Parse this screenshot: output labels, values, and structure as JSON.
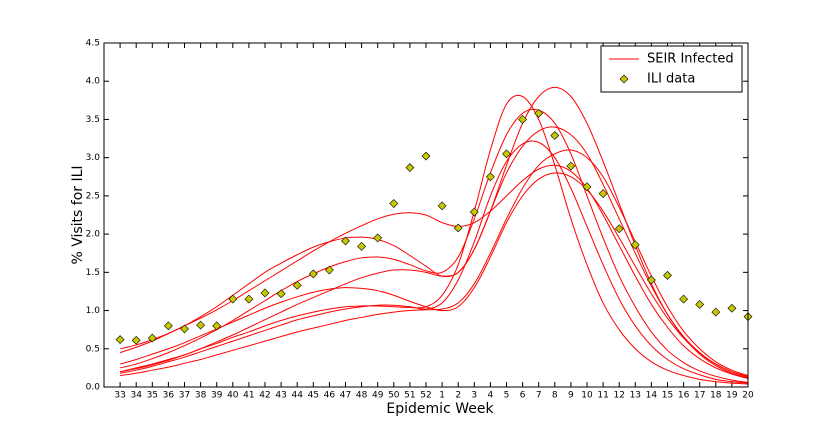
{
  "chart_data": {
    "type": "line-scatter",
    "x_label": "Epidemic Week",
    "y_label": "% Visits for ILI",
    "categories": [
      "33",
      "34",
      "35",
      "36",
      "37",
      "38",
      "39",
      "40",
      "41",
      "42",
      "43",
      "44",
      "45",
      "46",
      "47",
      "48",
      "49",
      "50",
      "51",
      "52",
      "1",
      "2",
      "3",
      "4",
      "5",
      "6",
      "7",
      "8",
      "9",
      "10",
      "11",
      "12",
      "13",
      "14",
      "15",
      "16",
      "17",
      "18",
      "19",
      "20"
    ],
    "ylim": [
      0,
      4.5
    ],
    "yticks": [
      {
        "value": 0,
        "label": "0.0"
      },
      {
        "value": 0.5,
        "label": "0.5"
      },
      {
        "value": 1,
        "label": "1.0"
      },
      {
        "value": 1.5,
        "label": "1.5"
      },
      {
        "value": 2,
        "label": "2.0"
      },
      {
        "value": 2.5,
        "label": "2.5"
      },
      {
        "value": 3,
        "label": "3.0"
      },
      {
        "value": 3.5,
        "label": "3.5"
      },
      {
        "value": 4,
        "label": "4.0"
      },
      {
        "value": 4.5,
        "label": "4.5"
      }
    ],
    "legend": "upper right",
    "lines": {
      "name": "SEIR Infected",
      "color": "#ff0000",
      "runs": [
        [
          0.2,
          0.25,
          0.3,
          0.36,
          0.42,
          0.5,
          0.57,
          0.65,
          0.72,
          0.8,
          0.87,
          0.93,
          0.98,
          1.02,
          1.05,
          1.06,
          1.06,
          1.05,
          1.04,
          1.05,
          1.2,
          1.6,
          2.3,
          3.1,
          3.7,
          3.8,
          3.5,
          2.9,
          2.2,
          1.6,
          1.1,
          0.75,
          0.5,
          0.33,
          0.22,
          0.15,
          0.1,
          0.07,
          0.05,
          0.04
        ],
        [
          0.45,
          0.52,
          0.6,
          0.7,
          0.8,
          0.92,
          1.05,
          1.2,
          1.35,
          1.5,
          1.62,
          1.73,
          1.83,
          1.9,
          1.95,
          1.96,
          1.93,
          1.85,
          1.72,
          1.58,
          1.45,
          1.5,
          1.8,
          2.3,
          2.9,
          3.45,
          3.8,
          3.92,
          3.8,
          3.45,
          2.95,
          2.4,
          1.85,
          1.35,
          0.95,
          0.65,
          0.43,
          0.28,
          0.18,
          0.12
        ],
        [
          0.25,
          0.3,
          0.37,
          0.45,
          0.54,
          0.64,
          0.75,
          0.87,
          1.0,
          1.13,
          1.26,
          1.38,
          1.48,
          1.57,
          1.64,
          1.69,
          1.7,
          1.67,
          1.6,
          1.52,
          1.5,
          1.7,
          2.2,
          2.8,
          3.3,
          3.58,
          3.62,
          3.45,
          3.05,
          2.5,
          1.95,
          1.45,
          1.05,
          0.72,
          0.48,
          0.32,
          0.21,
          0.14,
          0.09,
          0.06
        ],
        [
          0.2,
          0.24,
          0.29,
          0.35,
          0.42,
          0.5,
          0.59,
          0.68,
          0.78,
          0.88,
          0.98,
          1.08,
          1.17,
          1.26,
          1.35,
          1.43,
          1.49,
          1.53,
          1.53,
          1.5,
          1.45,
          1.5,
          1.8,
          2.3,
          2.8,
          3.15,
          3.35,
          3.4,
          3.3,
          3.05,
          2.65,
          2.2,
          1.75,
          1.32,
          0.95,
          0.66,
          0.45,
          0.3,
          0.2,
          0.13
        ],
        [
          0.18,
          0.22,
          0.27,
          0.33,
          0.39,
          0.46,
          0.53,
          0.6,
          0.67,
          0.74,
          0.81,
          0.88,
          0.93,
          0.98,
          1.02,
          1.05,
          1.07,
          1.07,
          1.05,
          1.02,
          1.1,
          1.4,
          1.9,
          2.5,
          2.95,
          3.18,
          3.2,
          3.0,
          2.6,
          2.1,
          1.6,
          1.15,
          0.8,
          0.54,
          0.36,
          0.24,
          0.16,
          0.1,
          0.07,
          0.05
        ],
        [
          0.15,
          0.18,
          0.22,
          0.26,
          0.31,
          0.36,
          0.42,
          0.48,
          0.54,
          0.6,
          0.66,
          0.72,
          0.77,
          0.82,
          0.87,
          0.91,
          0.95,
          0.98,
          1.0,
          1.01,
          1.02,
          1.1,
          1.35,
          1.75,
          2.2,
          2.6,
          2.9,
          3.05,
          3.1,
          3.0,
          2.75,
          2.35,
          1.9,
          1.45,
          1.05,
          0.73,
          0.5,
          0.33,
          0.22,
          0.15
        ],
        [
          0.5,
          0.55,
          0.62,
          0.7,
          0.8,
          0.9,
          1.01,
          1.13,
          1.26,
          1.39,
          1.52,
          1.65,
          1.78,
          1.9,
          2.01,
          2.11,
          2.2,
          2.26,
          2.28,
          2.25,
          2.15,
          2.1,
          2.15,
          2.3,
          2.5,
          2.7,
          2.85,
          2.9,
          2.82,
          2.6,
          2.25,
          1.85,
          1.45,
          1.08,
          0.78,
          0.54,
          0.37,
          0.25,
          0.17,
          0.11
        ],
        [
          0.3,
          0.36,
          0.43,
          0.5,
          0.58,
          0.67,
          0.76,
          0.85,
          0.94,
          1.03,
          1.11,
          1.18,
          1.24,
          1.28,
          1.3,
          1.29,
          1.26,
          1.2,
          1.12,
          1.05,
          1.0,
          1.05,
          1.3,
          1.7,
          2.15,
          2.5,
          2.72,
          2.8,
          2.75,
          2.58,
          2.3,
          1.95,
          1.58,
          1.22,
          0.9,
          0.64,
          0.44,
          0.3,
          0.2,
          0.14
        ]
      ]
    },
    "points": {
      "name": "ILI data",
      "color": "#c8c800",
      "values": [
        0.62,
        0.61,
        0.64,
        0.8,
        0.76,
        0.81,
        0.8,
        1.15,
        1.15,
        1.23,
        1.22,
        1.33,
        1.48,
        1.53,
        1.91,
        1.84,
        1.95,
        2.4,
        2.87,
        3.02,
        2.37,
        2.08,
        2.29,
        2.75,
        3.05,
        3.5,
        3.58,
        3.29,
        2.89,
        2.62,
        2.53,
        2.07,
        1.86,
        1.4,
        1.46,
        1.15,
        1.08,
        0.98,
        1.03,
        0.92
      ]
    }
  }
}
